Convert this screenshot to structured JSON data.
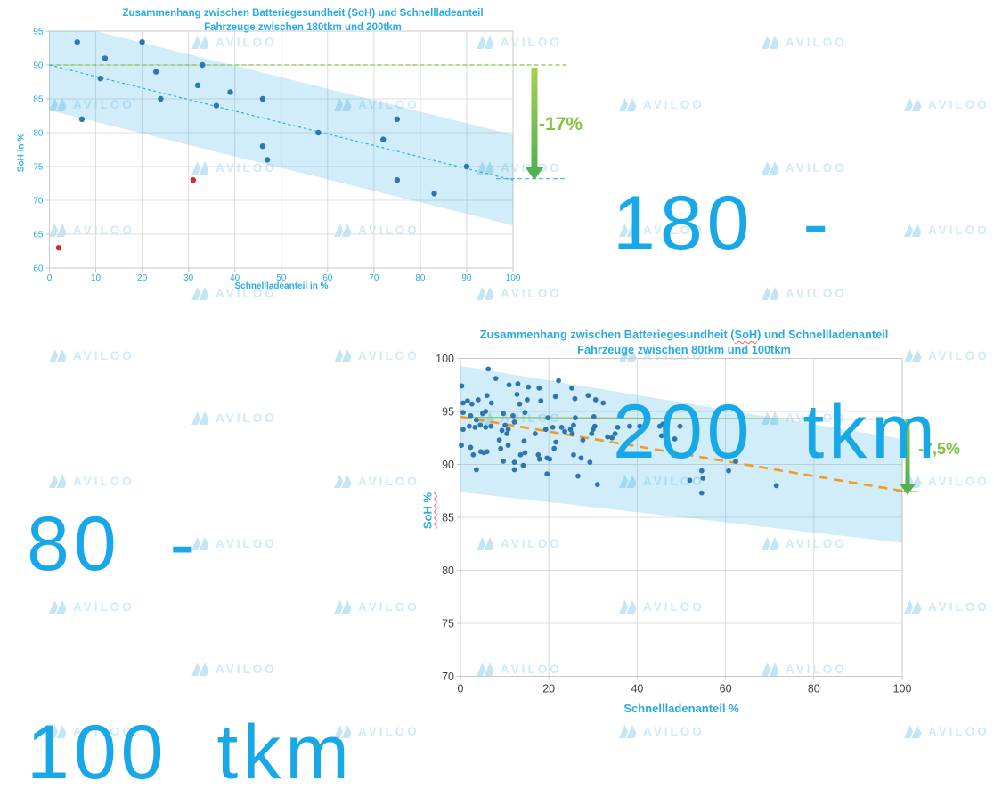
{
  "watermark": {
    "text": "AVILOO"
  },
  "big_labels": {
    "color": "#18a8e8",
    "top_right": {
      "line1": "180 -",
      "line2": "200 tkm"
    },
    "bottom_left": {
      "line1": "80 -",
      "line2": "100 tkm"
    }
  },
  "chart_data": [
    {
      "id": "chart-180-200",
      "type": "scatter",
      "title_line1": "Zusammenhang zwischen Batteriegesundheit (SoH) und Schnellladeanteil",
      "title_line2": "Fahrzeuge zwischen 180tkm und 200tkm",
      "xlabel": "Schnellladeanteil in %",
      "ylabel": "SoH in %",
      "xlim": [
        0,
        100
      ],
      "ylim": [
        60,
        95
      ],
      "xtick_step": 10,
      "ytick_step": 5,
      "grid": true,
      "point_color": "#2e75b6",
      "outlier_color": "#d62a28",
      "points": [
        [
          6,
          93.4
        ],
        [
          20,
          93.4
        ],
        [
          12,
          91
        ],
        [
          33,
          90
        ],
        [
          23,
          89
        ],
        [
          11,
          88
        ],
        [
          32,
          87
        ],
        [
          39,
          86
        ],
        [
          24,
          85
        ],
        [
          46,
          85
        ],
        [
          36,
          84
        ],
        [
          7,
          82
        ],
        [
          75,
          82
        ],
        [
          58,
          80
        ],
        [
          72,
          79
        ],
        [
          46,
          78
        ],
        [
          47,
          76
        ],
        [
          90,
          75
        ],
        [
          75,
          73
        ],
        [
          83,
          71
        ]
      ],
      "outliers": [
        [
          2,
          63
        ],
        [
          31,
          73
        ]
      ],
      "band": {
        "upper_start": 96.7,
        "upper_end": 79.7,
        "lower_start": 83.3,
        "lower_end": 66.3,
        "color": "rgba(41,171,226,0.22)"
      },
      "trend": {
        "y_start": 90,
        "y_end": 73,
        "color": "#29abe2",
        "dash": "3,3",
        "width": 1.2
      },
      "ref_line": {
        "y": 90,
        "color": "#86c440",
        "dash": "5,3",
        "width": 1.2
      },
      "drop_line": {
        "y": 73.2,
        "color": "#3fbdb0",
        "dash": "5,3",
        "width": 1.2
      },
      "annotation": {
        "text": "-17%",
        "color": "#84c33e"
      }
    },
    {
      "id": "chart-80-100",
      "type": "scatter",
      "title_line1_pre": "Zusammenhang zwischen Batteriegesundheit (",
      "title_line1_soh": "SoH",
      "title_line1_post": ") und Schnellladenanteil",
      "title_line2": "Fahrzeuge zwischen 80tkm und 100tkm",
      "xlabel": "Schnellladenanteil %",
      "ylabel": "SoH %",
      "xlim": [
        0,
        100
      ],
      "ylim": [
        70,
        100
      ],
      "xtick_step": 20,
      "ytick_step": 5,
      "grid": true,
      "point_color": "#2e75b6",
      "points": [
        [
          6.3,
          99
        ],
        [
          0.3,
          97.4
        ],
        [
          8,
          98.1
        ],
        [
          11,
          97.5
        ],
        [
          13,
          97.6
        ],
        [
          15.4,
          97.3
        ],
        [
          17.8,
          97.2
        ],
        [
          22.2,
          97.9
        ],
        [
          25.2,
          97.2
        ],
        [
          0.6,
          95.8
        ],
        [
          1.6,
          96
        ],
        [
          2.6,
          95.7
        ],
        [
          4,
          96.1
        ],
        [
          6,
          96.5
        ],
        [
          7,
          95.8
        ],
        [
          12.8,
          96.6
        ],
        [
          13.4,
          95.7
        ],
        [
          15.1,
          96.1
        ],
        [
          18.2,
          96
        ],
        [
          21.5,
          96.4
        ],
        [
          25.9,
          96.2
        ],
        [
          28.9,
          96.5
        ],
        [
          30.6,
          96.1
        ],
        [
          32.3,
          95.8
        ],
        [
          0.6,
          94.9
        ],
        [
          2.3,
          94.6
        ],
        [
          3.6,
          94.2
        ],
        [
          5,
          94.8
        ],
        [
          5.7,
          95
        ],
        [
          9.7,
          94.8
        ],
        [
          11.9,
          94.6
        ],
        [
          14.6,
          94.9
        ],
        [
          19.8,
          94.4
        ],
        [
          26,
          94.4
        ],
        [
          30.2,
          94.5
        ],
        [
          0.6,
          93.3
        ],
        [
          2,
          93.6
        ],
        [
          3.3,
          93.5
        ],
        [
          4.5,
          93.7
        ],
        [
          5.7,
          93.5
        ],
        [
          6.9,
          93.6
        ],
        [
          10.1,
          93.7
        ],
        [
          9.4,
          93.2
        ],
        [
          10.5,
          92.9
        ],
        [
          10.8,
          93.3
        ],
        [
          12.2,
          94
        ],
        [
          14.4,
          92.2
        ],
        [
          16.9,
          92.9
        ],
        [
          19.3,
          93.3
        ],
        [
          20.9,
          93.5
        ],
        [
          22.9,
          93.5
        ],
        [
          23.6,
          93.1
        ],
        [
          24.9,
          93.3
        ],
        [
          25.3,
          92.9
        ],
        [
          25.6,
          93.7
        ],
        [
          27.7,
          92.3
        ],
        [
          29.7,
          92.9
        ],
        [
          30,
          93.3
        ],
        [
          30.4,
          93.6
        ],
        [
          33.3,
          92.6
        ],
        [
          34.3,
          92.5
        ],
        [
          35,
          92.9
        ],
        [
          35.6,
          93.5
        ],
        [
          38.3,
          93.6
        ],
        [
          40.6,
          93.6
        ],
        [
          41,
          93.3
        ],
        [
          45.1,
          93.6
        ],
        [
          45.5,
          92.7
        ],
        [
          45.8,
          93.8
        ],
        [
          49.7,
          93.6
        ],
        [
          48.5,
          92.4
        ],
        [
          0.2,
          91.8
        ],
        [
          2.3,
          91.6
        ],
        [
          2.9,
          90.9
        ],
        [
          4.6,
          91.2
        ],
        [
          5.3,
          91.1
        ],
        [
          6,
          91.2
        ],
        [
          8.8,
          92.3
        ],
        [
          9.1,
          91.5
        ],
        [
          10.8,
          91.8
        ],
        [
          12.2,
          90.2
        ],
        [
          13.6,
          90.9
        ],
        [
          14.6,
          91.1
        ],
        [
          17.6,
          90.9
        ],
        [
          17.9,
          90.5
        ],
        [
          19.6,
          90.6
        ],
        [
          20.2,
          90.5
        ],
        [
          21.2,
          91.5
        ],
        [
          21.6,
          92.1
        ],
        [
          25.6,
          90.9
        ],
        [
          27.3,
          90.6
        ],
        [
          29.3,
          90.2
        ],
        [
          48.2,
          90.9
        ],
        [
          62.3,
          90.3
        ],
        [
          3.6,
          89.5
        ],
        [
          9.7,
          90.3
        ],
        [
          12.2,
          89.5
        ],
        [
          14.2,
          89.9
        ],
        [
          19.6,
          89.1
        ],
        [
          26.6,
          88.9
        ],
        [
          31,
          88.1
        ],
        [
          51.9,
          88.5
        ],
        [
          54.6,
          89.4
        ],
        [
          54.9,
          88.7
        ],
        [
          54.6,
          87.3
        ],
        [
          60.7,
          89.4
        ],
        [
          71.5,
          88
        ]
      ],
      "band": {
        "upper_start": 99.3,
        "upper_end": 92.4,
        "lower_start": 87.4,
        "lower_end": 82.6,
        "color": "rgba(41,171,226,0.22)"
      },
      "trend": {
        "y_start": 94.5,
        "y_end": 87.5,
        "color": "#f29b20",
        "dash": "10,7",
        "width": 2.6
      },
      "ref_line": {
        "y_start": 94.45,
        "y_end": 94.25,
        "color": "#8fbd62",
        "width": 1.2
      },
      "annotation": {
        "text": "-7,5%",
        "color": "#84c33e"
      }
    }
  ]
}
